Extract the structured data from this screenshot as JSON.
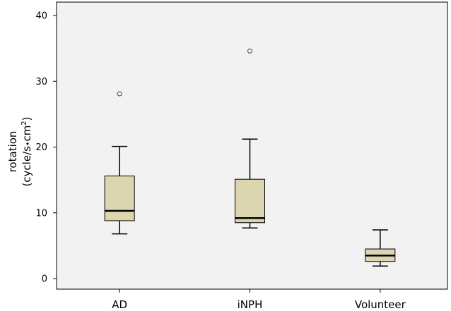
{
  "chart_data": {
    "type": "box",
    "ylabel_line1": "rotation",
    "ylabel_unit_prefix": "(cycle/s",
    "ylabel_unit_mid": "•",
    "ylabel_unit_cm": "cm",
    "ylabel_unit_sup": "2",
    "ylabel_unit_suffix": ")",
    "ylim": [
      -1,
      42
    ],
    "yticks": [
      0,
      10,
      20,
      30,
      40
    ],
    "grid": false,
    "colors": {
      "plot_bg": "#f2f2f2",
      "box_fill": "#dcd6b0",
      "stroke": "#000000"
    },
    "categories": [
      "AD",
      "iNPH",
      "Volunteer"
    ],
    "boxes": [
      {
        "category": "AD",
        "whisker_low": 6.8,
        "q1": 8.8,
        "median": 10.3,
        "q3": 15.6,
        "whisker_high": 20.1,
        "outliers": [
          28.1
        ]
      },
      {
        "category": "iNPH",
        "whisker_low": 7.7,
        "q1": 8.5,
        "median": 9.2,
        "q3": 15.1,
        "whisker_high": 21.2,
        "outliers": [
          34.6
        ]
      },
      {
        "category": "Volunteer",
        "whisker_low": 1.9,
        "q1": 2.6,
        "median": 3.5,
        "q3": 4.5,
        "whisker_high": 7.4,
        "outliers": []
      }
    ]
  }
}
